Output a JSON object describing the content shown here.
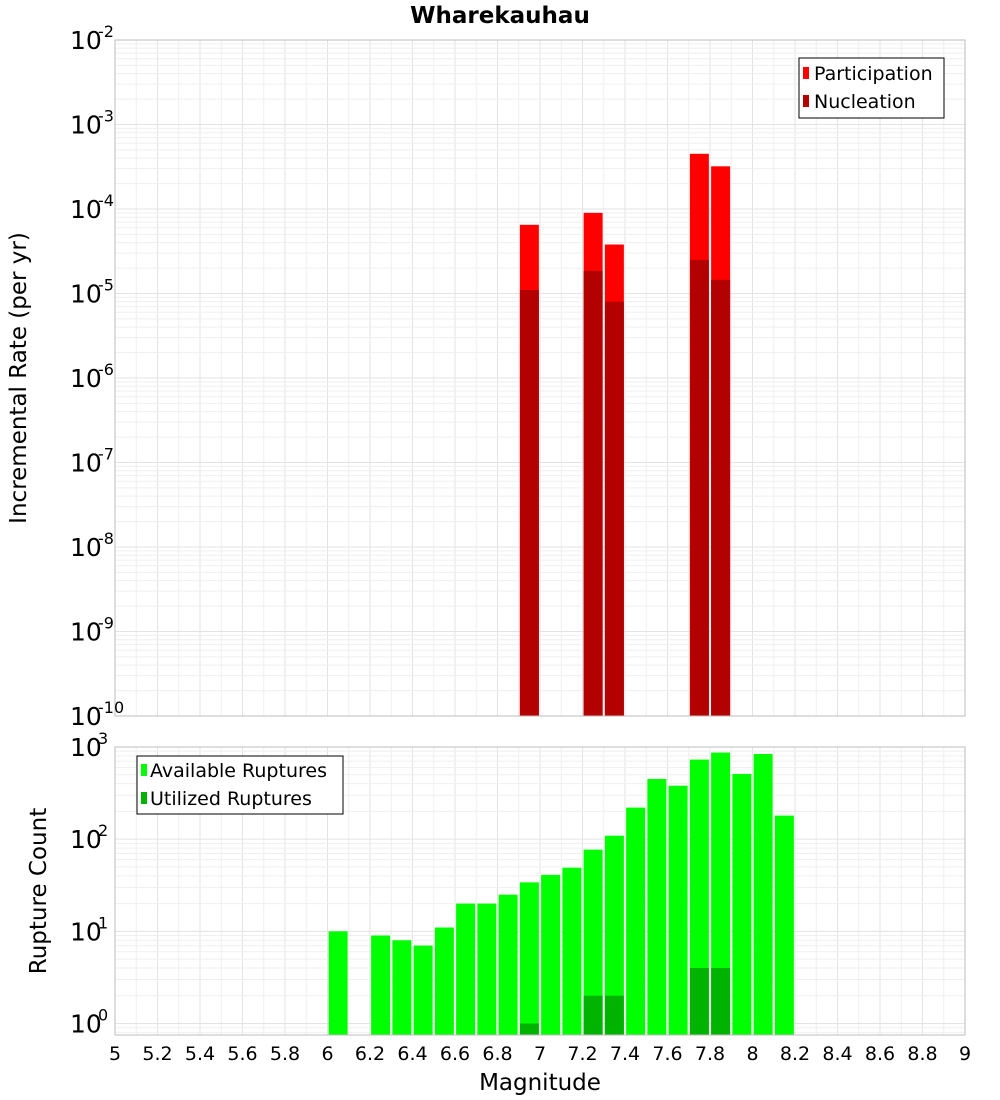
{
  "chart_data": [
    {
      "type": "bar",
      "title": "Wharekauhau",
      "xlabel": "",
      "ylabel": "Incremental Rate (per yr)",
      "xlim": [
        5,
        9
      ],
      "ylim": [
        1e-10,
        0.01
      ],
      "yscale": "log",
      "grid": true,
      "legend_position": "top-right",
      "x": [
        6.95,
        7.25,
        7.35,
        7.75,
        7.85
      ],
      "series": [
        {
          "name": "Participation",
          "color": "#ff0000",
          "values": [
            6.5e-05,
            9e-05,
            3.8e-05,
            0.00045,
            0.00032
          ]
        },
        {
          "name": "Nucleation",
          "color": "#b30000",
          "values": [
            1.1e-05,
            1.85e-05,
            8e-06,
            2.5e-05,
            1.45e-05
          ]
        }
      ],
      "ytick_exponents": [
        -10,
        -9,
        -8,
        -7,
        -6,
        -5,
        -4,
        -3,
        -2
      ]
    },
    {
      "type": "bar",
      "title": "",
      "xlabel": "Magnitude",
      "ylabel": "Rupture Count",
      "xlim": [
        5,
        9
      ],
      "ylim": [
        0.75,
        1000
      ],
      "yscale": "log",
      "grid": true,
      "legend_position": "top-left",
      "x": [
        6.05,
        6.25,
        6.35,
        6.45,
        6.55,
        6.65,
        6.75,
        6.85,
        6.95,
        7.05,
        7.15,
        7.25,
        7.35,
        7.45,
        7.55,
        7.65,
        7.75,
        7.85,
        7.95,
        8.05,
        8.15
      ],
      "series": [
        {
          "name": "Available Ruptures",
          "color": "#00ff00",
          "values": [
            10,
            9,
            8,
            7,
            11,
            20,
            20,
            25,
            34,
            41,
            49,
            77,
            109,
            220,
            450,
            380,
            730,
            870,
            510,
            840,
            180
          ]
        },
        {
          "name": "Utilized Ruptures",
          "color": "#00b300",
          "values": [
            0,
            0,
            0,
            0,
            0,
            0,
            0,
            0,
            1,
            0,
            0,
            2,
            2,
            0,
            0,
            0,
            4,
            4,
            0,
            0,
            0
          ]
        }
      ],
      "ytick_exponents": [
        0,
        1,
        2,
        3
      ],
      "xticks": [
        "5",
        "5.2",
        "5.4",
        "5.6",
        "5.8",
        "6",
        "6.2",
        "6.4",
        "6.6",
        "6.8",
        "7",
        "7.2",
        "7.4",
        "7.6",
        "7.8",
        "8",
        "8.2",
        "8.4",
        "8.6",
        "8.8",
        "9"
      ]
    }
  ]
}
